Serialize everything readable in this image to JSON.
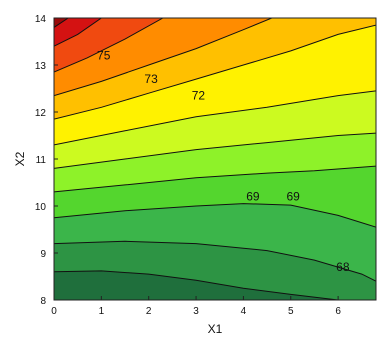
{
  "chart_data": {
    "type": "contour",
    "xlabel": "X1",
    "ylabel": "X2",
    "xlim": [
      0,
      6.8
    ],
    "ylim": [
      8,
      14
    ],
    "x_ticks": [
      "0",
      "1",
      "2",
      "3",
      "4",
      "5",
      "6"
    ],
    "y_ticks": [
      "8",
      "9",
      "10",
      "11",
      "12",
      "13",
      "14"
    ],
    "contour_lines": [
      {
        "level": 68,
        "points": [
          [
            0,
            8.6
          ],
          [
            1,
            8.62
          ],
          [
            2,
            8.55
          ],
          [
            3,
            8.42
          ],
          [
            4,
            8.25
          ],
          [
            5,
            8.12
          ],
          [
            6,
            8.0
          ]
        ]
      },
      {
        "level": 68,
        "points": [
          [
            0,
            9.2
          ],
          [
            1.5,
            9.25
          ],
          [
            3,
            9.2
          ],
          [
            4.5,
            9.05
          ],
          [
            5.5,
            8.85
          ],
          [
            6.5,
            8.55
          ],
          [
            6.8,
            8.4
          ]
        ]
      },
      {
        "level": 69,
        "points": [
          [
            0,
            9.75
          ],
          [
            1.5,
            9.9
          ],
          [
            3,
            10.0
          ],
          [
            4,
            10.05
          ],
          [
            5,
            10.02
          ],
          [
            6,
            9.8
          ],
          [
            6.8,
            9.55
          ]
        ]
      },
      {
        "level": 69,
        "points": [
          [
            0,
            10.3
          ],
          [
            1.5,
            10.45
          ],
          [
            3,
            10.6
          ],
          [
            4.5,
            10.7
          ],
          [
            5.5,
            10.75
          ],
          [
            6.8,
            10.85
          ]
        ]
      },
      {
        "level": 70,
        "points": [
          [
            0,
            10.8
          ],
          [
            1.5,
            11.0
          ],
          [
            3,
            11.2
          ],
          [
            4.5,
            11.35
          ],
          [
            6,
            11.5
          ],
          [
            6.8,
            11.55
          ]
        ]
      },
      {
        "level": 71,
        "points": [
          [
            0,
            11.3
          ],
          [
            1.5,
            11.6
          ],
          [
            3,
            11.9
          ],
          [
            4.5,
            12.1
          ],
          [
            6,
            12.35
          ],
          [
            6.8,
            12.45
          ]
        ]
      },
      {
        "level": 72,
        "points": [
          [
            0,
            11.85
          ],
          [
            1,
            12.1
          ],
          [
            2,
            12.4
          ],
          [
            3,
            12.7
          ],
          [
            4,
            13.0
          ],
          [
            5,
            13.3
          ],
          [
            6,
            13.65
          ],
          [
            6.8,
            13.85
          ]
        ]
      },
      {
        "level": 73,
        "points": [
          [
            0,
            12.35
          ],
          [
            1,
            12.65
          ],
          [
            2,
            13.0
          ],
          [
            3,
            13.35
          ],
          [
            4,
            13.75
          ],
          [
            4.6,
            14.0
          ]
        ]
      },
      {
        "level": 74,
        "points": [
          [
            0,
            12.85
          ],
          [
            0.7,
            13.15
          ],
          [
            1.5,
            13.55
          ],
          [
            2.3,
            14.0
          ]
        ]
      },
      {
        "level": 75,
        "points": [
          [
            0,
            13.4
          ],
          [
            0.5,
            13.65
          ],
          [
            1.0,
            14.0
          ]
        ]
      },
      {
        "level": 76,
        "points": [
          [
            0,
            13.8
          ],
          [
            0.3,
            14.0
          ]
        ]
      }
    ],
    "labels": [
      {
        "text": "75",
        "x": 1.05,
        "y": 13.2
      },
      {
        "text": "73",
        "x": 2.05,
        "y": 12.7
      },
      {
        "text": "72",
        "x": 3.05,
        "y": 12.35
      },
      {
        "text": "69",
        "x": 4.2,
        "y": 10.2
      },
      {
        "text": "69",
        "x": 5.05,
        "y": 10.2
      },
      {
        "text": "68",
        "x": 6.1,
        "y": 8.7
      }
    ],
    "colors": {
      "bands": [
        "#1f6f3c",
        "#2d9444",
        "#3bb54a",
        "#54d62e",
        "#8ef229",
        "#ccfa20",
        "#fff200",
        "#ffc000",
        "#ff8c00",
        "#f04a10",
        "#d41212",
        "#9a0a0a"
      ],
      "line": "#111111"
    }
  }
}
